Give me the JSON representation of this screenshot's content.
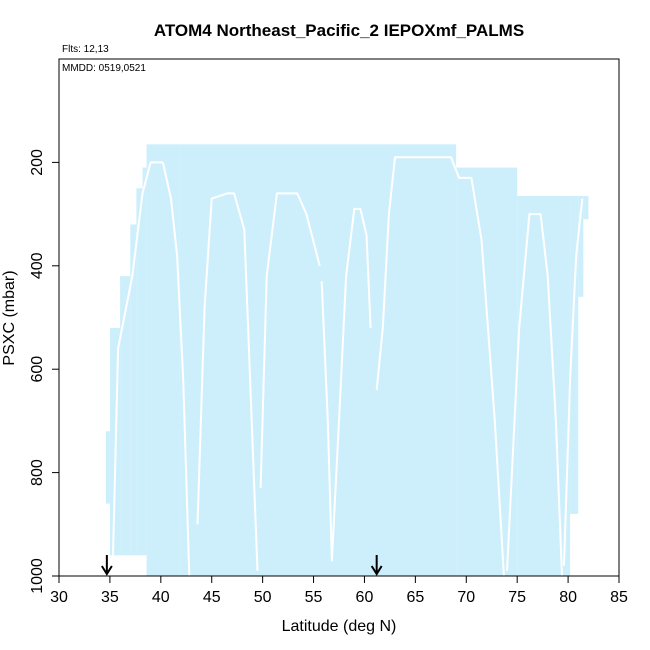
{
  "chart_data": {
    "type": "area",
    "title": "ATOM4 Northeast_Pacific_2 IEPOXmf_PALMS",
    "subtitle_flights": "Flts: 12,13",
    "subtitle_dates": "MMDD: 0519,0521",
    "xlabel": "Latitude (deg N)",
    "ylabel": "PSXC (mbar)",
    "xlim": [
      30,
      85
    ],
    "ylim": [
      1000,
      0
    ],
    "y_reversed": true,
    "grid": false,
    "legend": "none",
    "colors": {
      "fill": "#cdeffc",
      "profile": "#ffffff",
      "axis": "#000000",
      "marker": "#000000"
    },
    "x_ticks": [
      30,
      35,
      40,
      45,
      50,
      55,
      60,
      65,
      70,
      75,
      80,
      85
    ],
    "x_tick_labels": [
      "30",
      "35",
      "40",
      "45",
      "50",
      "55",
      "60",
      "65",
      "70",
      "75",
      "80",
      "85"
    ],
    "y_ticks": [
      200,
      400,
      600,
      800,
      1000
    ],
    "y_tick_labels": [
      "200",
      "400",
      "600",
      "800",
      "1000"
    ],
    "coverage_bands": [
      {
        "x": [
          34.6,
          35.0
        ],
        "top": 720,
        "bottom": 860
      },
      {
        "x": [
          35.0,
          36.0
        ],
        "top": 520,
        "bottom": 960
      },
      {
        "x": [
          36.0,
          37.0
        ],
        "top": 420,
        "bottom": 960
      },
      {
        "x": [
          37.0,
          37.6
        ],
        "top": 320,
        "bottom": 960
      },
      {
        "x": [
          37.6,
          38.2
        ],
        "top": 250,
        "bottom": 960
      },
      {
        "x": [
          38.2,
          38.6
        ],
        "top": 210,
        "bottom": 960
      },
      {
        "x": [
          38.6,
          41.8
        ],
        "top": 165,
        "bottom": 1000
      },
      {
        "x": [
          41.8,
          69.0
        ],
        "top": 165,
        "bottom": 1000
      },
      {
        "x": [
          69.0,
          75.0
        ],
        "top": 210,
        "bottom": 1000
      },
      {
        "x": [
          75.0,
          80.2
        ],
        "top": 265,
        "bottom": 1000
      },
      {
        "x": [
          80.2,
          81.0
        ],
        "top": 265,
        "bottom": 880
      },
      {
        "x": [
          81.0,
          81.5
        ],
        "top": 265,
        "bottom": 460
      },
      {
        "x": [
          81.5,
          82.0
        ],
        "top": 265,
        "bottom": 310
      }
    ],
    "profiles": [
      {
        "x": [
          35.3,
          35.8,
          37.2,
          38.2,
          39.0,
          40.2
        ],
        "y": [
          960,
          560,
          420,
          260,
          200,
          200
        ]
      },
      {
        "x": [
          40.2,
          41.0,
          41.6,
          42.2,
          42.8
        ],
        "y": [
          200,
          270,
          380,
          620,
          1000
        ]
      },
      {
        "x": [
          43.6,
          44.3,
          45.0,
          46.5,
          47.2,
          48.2,
          49.5
        ],
        "y": [
          900,
          480,
          270,
          260,
          260,
          330,
          990
        ]
      },
      {
        "x": [
          49.8,
          50.4,
          51.4,
          53.4,
          54.3,
          55.6
        ],
        "y": [
          830,
          420,
          260,
          260,
          300,
          400
        ]
      },
      {
        "x": [
          55.8,
          56.4,
          56.8,
          57.5,
          58.2,
          59.0,
          59.6,
          60.2,
          60.6
        ],
        "y": [
          430,
          700,
          970,
          700,
          420,
          290,
          290,
          340,
          520
        ]
      },
      {
        "x": [
          61.2,
          61.8,
          62.4,
          63.0,
          63.4
        ],
        "y": [
          640,
          520,
          300,
          190,
          190
        ]
      },
      {
        "x": [
          63.4,
          68.5,
          69.3,
          70.5,
          71.5,
          72.8,
          73.7
        ],
        "y": [
          190,
          190,
          230,
          230,
          350,
          700,
          1000
        ]
      },
      {
        "x": [
          74.0,
          75.2,
          76.2,
          77.3,
          78.0,
          78.8,
          79.4
        ],
        "y": [
          990,
          520,
          300,
          300,
          420,
          700,
          1000
        ]
      },
      {
        "x": [
          79.6,
          80.2,
          80.8,
          81.4
        ],
        "y": [
          980,
          620,
          380,
          270
        ]
      }
    ],
    "markers": [
      34.7,
      61.2
    ]
  }
}
